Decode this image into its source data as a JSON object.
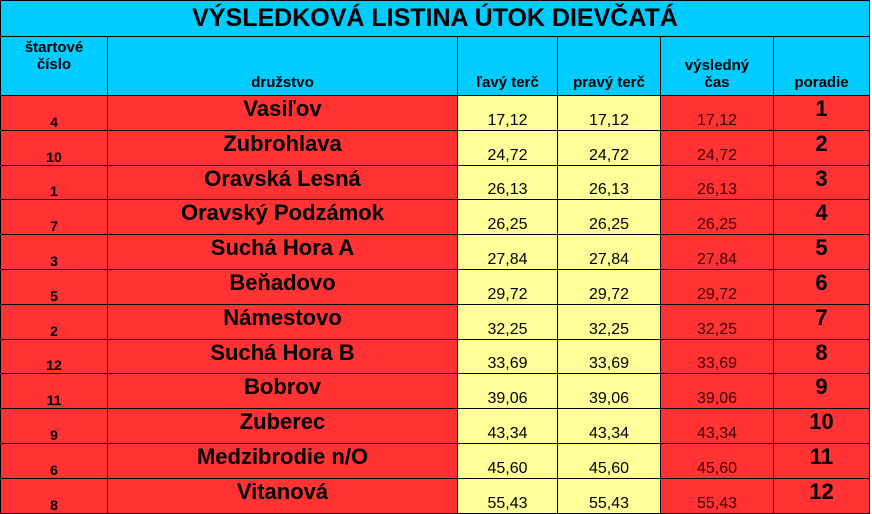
{
  "title": "VÝSLEDKOVÁ LISTINA ÚTOK DIEVČATÁ",
  "table": {
    "header": [
      "štartové\nčíslo",
      "družstvo",
      "ľavý terč",
      "pravý terč",
      "výsledný\nčas",
      "poradie"
    ],
    "rows": [
      [
        "4",
        "Vasiľov",
        "17,12",
        "17,12",
        "17,12",
        "1"
      ],
      [
        "10",
        "Zubrohlava",
        "24,72",
        "24,72",
        "24,72",
        "2"
      ],
      [
        "1",
        "Oravská Lesná",
        "26,13",
        "26,13",
        "26,13",
        "3"
      ],
      [
        "7",
        "Oravský Podzámok",
        "26,25",
        "26,25",
        "26,25",
        "4"
      ],
      [
        "3",
        "Suchá Hora A",
        "27,84",
        "27,84",
        "27,84",
        "5"
      ],
      [
        "5",
        "Beňadovo",
        "29,72",
        "29,72",
        "29,72",
        "6"
      ],
      [
        "2",
        "Námestovo",
        "32,25",
        "32,25",
        "32,25",
        "7"
      ],
      [
        "12",
        "Suchá Hora B",
        "33,69",
        "33,69",
        "33,69",
        "8"
      ],
      [
        "11",
        "Bobrov",
        "39,06",
        "39,06",
        "39,06",
        "9"
      ],
      [
        "9",
        "Zuberec",
        "43,34",
        "43,34",
        "43,34",
        "10"
      ],
      [
        "6",
        "Medzibrodie n/O",
        "45,60",
        "45,60",
        "45,60",
        "11"
      ],
      [
        "8",
        "Vitanová",
        "55,43",
        "55,43",
        "55,43",
        "12"
      ]
    ]
  }
}
